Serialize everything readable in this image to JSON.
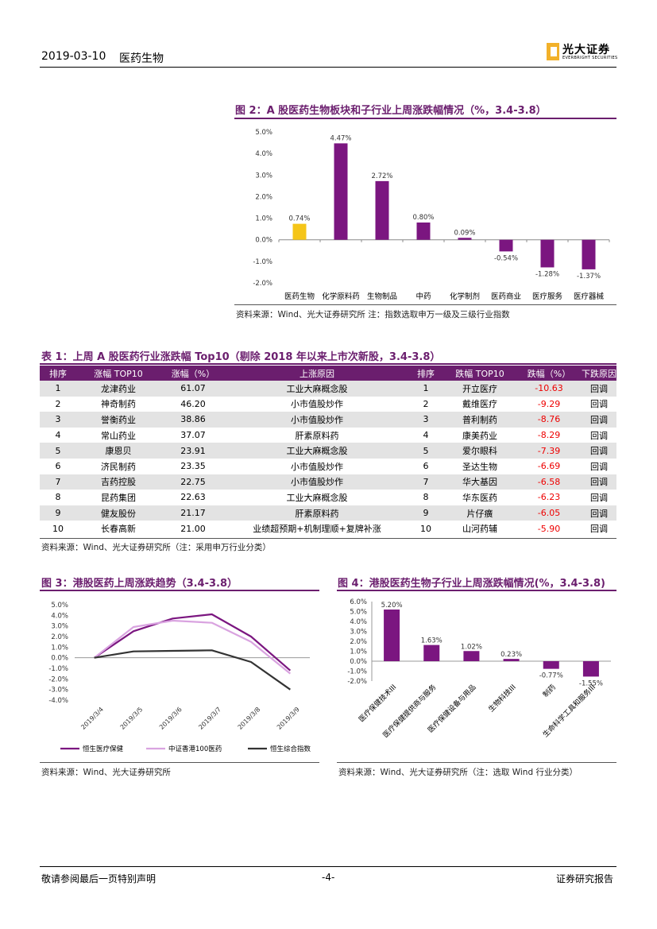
{
  "header": {
    "date": "2019-03-10",
    "section": "医药生物",
    "logo_cn": "光大证券",
    "logo_en": "EVERBRIGHT SECURITIES"
  },
  "fig2": {
    "title": "图 2：A 股医药生物板块和子行业上周涨跌幅情况（%，3.4-3.8）",
    "source": "资料来源：Wind、光大证券研究所  注：指数选取申万一级及三级行业指数",
    "chart_data": {
      "type": "bar",
      "categories": [
        "医药生物",
        "化学原料药",
        "生物制品",
        "中药",
        "化学制剂",
        "医药商业",
        "医疗服务",
        "医疗器械"
      ],
      "values": [
        0.74,
        4.47,
        2.72,
        0.8,
        0.09,
        -0.54,
        -1.28,
        -1.37
      ],
      "value_labels": [
        "0.74%",
        "4.47%",
        "2.72%",
        "0.80%",
        "0.09%",
        "-0.54%",
        "-1.28%",
        "-1.37%"
      ],
      "yticks": [
        "5.0%",
        "4.0%",
        "3.0%",
        "2.0%",
        "1.0%",
        "0.0%",
        "-1.0%",
        "-2.0%"
      ],
      "ylim": [
        -2,
        5
      ],
      "colors": [
        "#f5c518",
        "#7b1680",
        "#7b1680",
        "#7b1680",
        "#7b1680",
        "#7b1680",
        "#7b1680",
        "#7b1680"
      ]
    }
  },
  "table1": {
    "title": "表 1：上周 A 股医药行业涨跌幅 Top10（剔除 2018 年以来上市次新股，3.4-3.8）",
    "headers": [
      "排序",
      "涨幅 TOP10",
      "涨幅（%）",
      "上涨原因",
      "排序",
      "跌幅 TOP10",
      "跌幅（%）",
      "下跌原因"
    ],
    "rows": [
      [
        "1",
        "龙津药业",
        "61.07",
        "工业大麻概念股",
        "1",
        "开立医疗",
        "-10.63",
        "回调"
      ],
      [
        "2",
        "神奇制药",
        "46.20",
        "小市值股炒作",
        "2",
        "戴维医疗",
        "-9.29",
        "回调"
      ],
      [
        "3",
        "誉衡药业",
        "38.86",
        "小市值股炒作",
        "3",
        "普利制药",
        "-8.76",
        "回调"
      ],
      [
        "4",
        "常山药业",
        "37.07",
        "肝素原料药",
        "4",
        "康美药业",
        "-8.29",
        "回调"
      ],
      [
        "5",
        "康恩贝",
        "23.91",
        "工业大麻概念股",
        "5",
        "爱尔眼科",
        "-7.39",
        "回调"
      ],
      [
        "6",
        "济民制药",
        "23.35",
        "小市值股炒作",
        "6",
        "圣达生物",
        "-6.69",
        "回调"
      ],
      [
        "7",
        "吉药控股",
        "22.75",
        "小市值股炒作",
        "7",
        "华大基因",
        "-6.58",
        "回调"
      ],
      [
        "8",
        "昆药集团",
        "22.63",
        "工业大麻概念股",
        "8",
        "华东医药",
        "-6.23",
        "回调"
      ],
      [
        "9",
        "健友股份",
        "21.17",
        "肝素原料药",
        "9",
        "片仔癀",
        "-6.05",
        "回调"
      ],
      [
        "10",
        "长春高新",
        "21.00",
        "业绩超预期+机制理顺+复牌补涨",
        "10",
        "山河药辅",
        "-5.90",
        "回调"
      ]
    ],
    "source": "资料来源：Wind、光大证券研究所（注：采用申万行业分类）"
  },
  "fig3": {
    "title": "图 3：港股医药上周涨跌趋势（3.4-3.8）",
    "source": "资料来源：Wind、光大证券研究所",
    "chart_data": {
      "type": "line",
      "x": [
        "2019/3/4",
        "2019/3/5",
        "2019/3/6",
        "2019/3/7",
        "2019/3/8",
        "2019/3/9"
      ],
      "yticks": [
        "5.0%",
        "4.0%",
        "3.0%",
        "2.0%",
        "1.0%",
        "0.0%",
        "-1.0%",
        "-2.0%",
        "-3.0%",
        "-4.0%"
      ],
      "ylim": [
        -4,
        5
      ],
      "series": [
        {
          "name": "恒生医疗保健",
          "color": "#7b1680",
          "values": [
            0,
            2.5,
            3.7,
            4.1,
            2.0,
            -1.2
          ]
        },
        {
          "name": "中证香港100医药",
          "color": "#d9a3e0",
          "values": [
            0,
            2.9,
            3.5,
            3.3,
            1.5,
            -1.5
          ]
        },
        {
          "name": "恒生综合指数",
          "color": "#333333",
          "values": [
            0,
            0.6,
            0.65,
            0.7,
            -0.4,
            -3.0
          ]
        }
      ]
    }
  },
  "fig4": {
    "title": "图 4：港股医药生物子行业上周涨跌幅情况(%，3.4-3.8)",
    "source": "资料来源：Wind、光大证券研究所（注：选取 Wind 行业分类）",
    "chart_data": {
      "type": "bar",
      "categories": [
        "医疗保健技术III",
        "医疗保健提供商与服务",
        "医疗保健设备与用品",
        "生物科技III",
        "制药",
        "生命科学工具和服务III"
      ],
      "values": [
        5.2,
        1.63,
        1.02,
        0.23,
        -0.77,
        -1.55
      ],
      "value_labels": [
        "5.20%",
        "1.63%",
        "1.02%",
        "0.23%",
        "-0.77%",
        "-1.55%"
      ],
      "yticks": [
        "6.0%",
        "5.0%",
        "4.0%",
        "3.0%",
        "2.0%",
        "1.0%",
        "0.0%",
        "-1.0%",
        "-2.0%"
      ],
      "ylim": [
        -2,
        6
      ],
      "color": "#7b1680"
    }
  },
  "footer": {
    "left": "敬请参阅最后一页特别声明",
    "page": "-4-",
    "right": "证券研究报告"
  }
}
